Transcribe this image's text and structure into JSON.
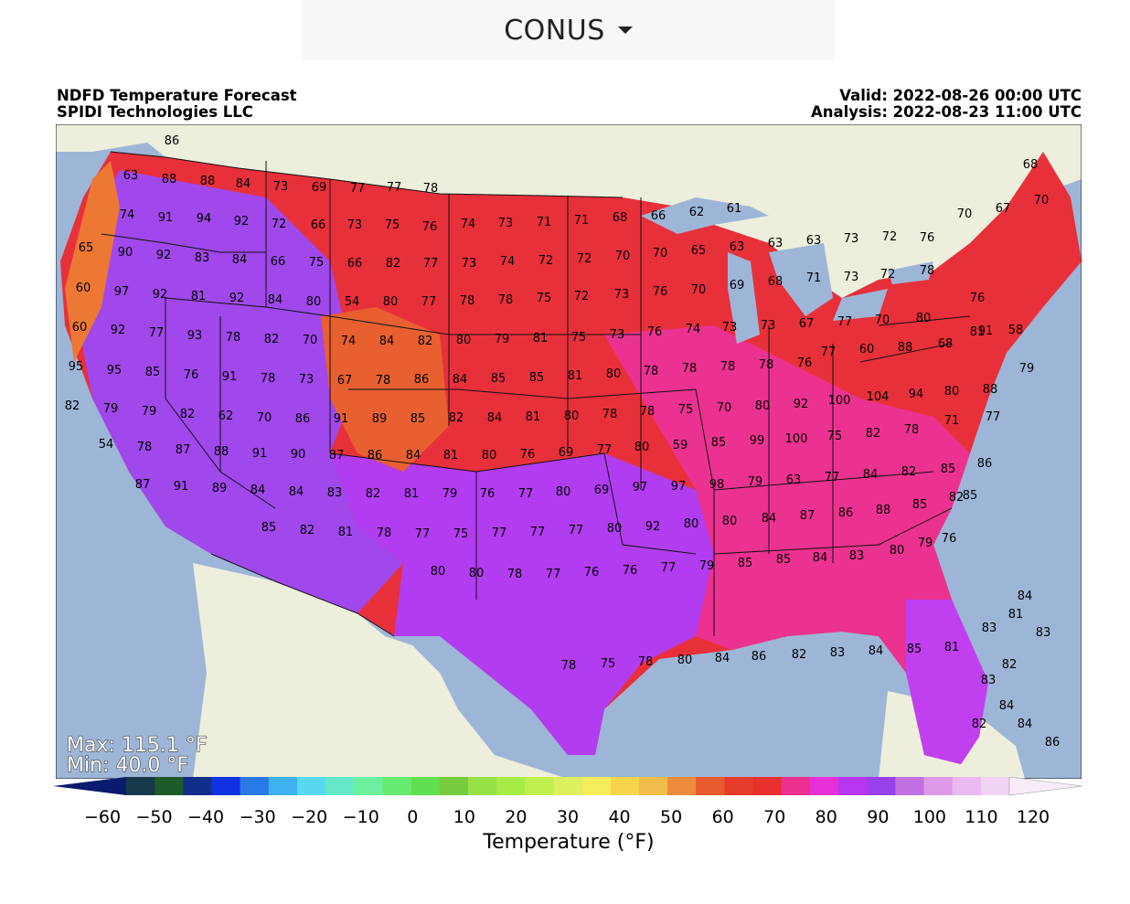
{
  "region_selector": {
    "label": "CONUS"
  },
  "header": {
    "title": "NDFD Temperature Forecast",
    "subtitle": "SPIDI Technologies LLC",
    "valid": "Valid: 2022-08-26 00:00 UTC",
    "analysis": "Analysis: 2022-08-23 11:00 UTC"
  },
  "stats": {
    "max": "Max: 115.1 °F",
    "min": "Min: 40.0 °F"
  },
  "colorbar": {
    "title": "Temperature (°F)",
    "ticks": [
      "−60",
      "−50",
      "−40",
      "−30",
      "−20",
      "−10",
      "0",
      "10",
      "20",
      "30",
      "40",
      "50",
      "60",
      "70",
      "80",
      "90",
      "100",
      "110",
      "120"
    ],
    "colors": [
      "#0a1a6e",
      "#163a4a",
      "#1e5a2a",
      "#102e8a",
      "#1032e0",
      "#2a7ae6",
      "#3fb0f0",
      "#58d8f0",
      "#66e8c8",
      "#6cf0a0",
      "#66ea70",
      "#60e050",
      "#76cc3c",
      "#96e048",
      "#a8ec48",
      "#c0f050",
      "#dcf060",
      "#f4ec58",
      "#f6d44c",
      "#f2bc4a",
      "#ec8c3c",
      "#e85c30",
      "#e63c2c",
      "#e8302e",
      "#ec3090",
      "#e830d8",
      "#b836f0",
      "#9840ec",
      "#c070e0",
      "#dc9ae8",
      "#e8baf0",
      "#f0d4f4",
      "#f8ecf8"
    ]
  },
  "temperature_labels": [
    "86",
    "63",
    "88",
    "88",
    "84",
    "73",
    "69",
    "77",
    "77",
    "78",
    "74",
    "91",
    "94",
    "92",
    "72",
    "66",
    "73",
    "75",
    "76",
    "74",
    "73",
    "71",
    "71",
    "68",
    "66",
    "62",
    "61",
    "70",
    "67",
    "70",
    "68",
    "65",
    "90",
    "92",
    "83",
    "84",
    "66",
    "75",
    "66",
    "82",
    "77",
    "73",
    "74",
    "72",
    "72",
    "70",
    "70",
    "65",
    "63",
    "63",
    "63",
    "73",
    "72",
    "76",
    "60",
    "97",
    "92",
    "81",
    "92",
    "84",
    "80",
    "54",
    "80",
    "77",
    "78",
    "78",
    "75",
    "72",
    "73",
    "76",
    "70",
    "69",
    "68",
    "71",
    "73",
    "72",
    "78",
    "76",
    "60",
    "92",
    "77",
    "93",
    "78",
    "82",
    "70",
    "74",
    "84",
    "82",
    "80",
    "79",
    "81",
    "75",
    "73",
    "76",
    "74",
    "73",
    "73",
    "67",
    "77",
    "70",
    "80",
    "81",
    "58",
    "95",
    "95",
    "85",
    "76",
    "91",
    "78",
    "73",
    "67",
    "78",
    "86",
    "84",
    "85",
    "85",
    "81",
    "80",
    "78",
    "78",
    "78",
    "78",
    "76",
    "77",
    "60",
    "88",
    "68",
    "91",
    "82",
    "79",
    "79",
    "82",
    "62",
    "70",
    "86",
    "91",
    "89",
    "85",
    "82",
    "84",
    "81",
    "80",
    "78",
    "78",
    "75",
    "70",
    "80",
    "92",
    "100",
    "104",
    "94",
    "80",
    "88",
    "79",
    "54",
    "78",
    "87",
    "88",
    "91",
    "90",
    "87",
    "86",
    "84",
    "81",
    "80",
    "76",
    "69",
    "77",
    "80",
    "59",
    "85",
    "99",
    "100",
    "75",
    "82",
    "78",
    "71",
    "77",
    "85",
    "87",
    "91",
    "89",
    "84",
    "84",
    "83",
    "82",
    "81",
    "79",
    "76",
    "77",
    "80",
    "69",
    "97",
    "97",
    "98",
    "79",
    "63",
    "77",
    "84",
    "82",
    "85",
    "86",
    "85",
    "82",
    "81",
    "78",
    "77",
    "75",
    "77",
    "77",
    "77",
    "80",
    "92",
    "80",
    "80",
    "84",
    "87",
    "86",
    "88",
    "85",
    "82",
    "80",
    "80",
    "78",
    "77",
    "76",
    "76",
    "77",
    "79",
    "85",
    "85",
    "84",
    "83",
    "80",
    "79",
    "76",
    "78",
    "75",
    "78",
    "80",
    "84",
    "86",
    "82",
    "83",
    "84",
    "85",
    "81",
    "83",
    "84",
    "81",
    "83",
    "83",
    "82",
    "82",
    "84",
    "84",
    "86"
  ]
}
